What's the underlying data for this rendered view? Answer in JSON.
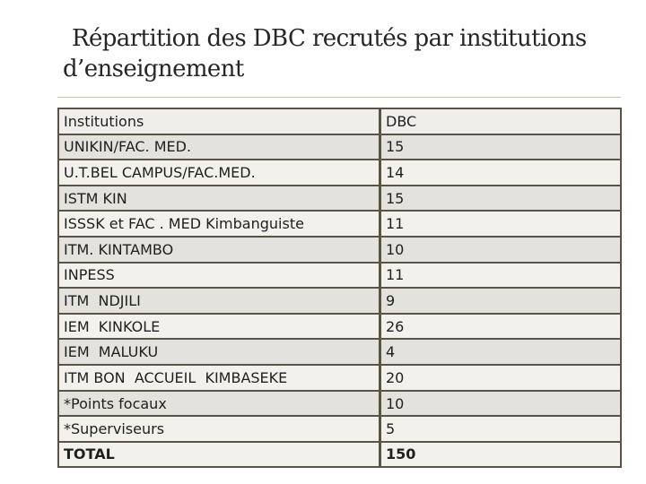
{
  "title": {
    "line1": "Répartition des DBC recrutés par institutions",
    "line2": "d’enseignement"
  },
  "table": {
    "headers": [
      "Institutions",
      "DBC"
    ],
    "rows": [
      [
        "UNIKIN/FAC. MED.",
        "15"
      ],
      [
        "U.T.BEL CAMPUS/FAC.MED.",
        "14"
      ],
      [
        "ISTM KIN",
        "15"
      ],
      [
        "ISSSK et FAC . MED Kimbanguiste",
        "11"
      ],
      [
        "ITM. KINTAMBO",
        "10"
      ],
      [
        "INPESS",
        "11"
      ],
      [
        "ITM  NDJILI",
        "9"
      ],
      [
        "IEM  KINKOLE",
        "26"
      ],
      [
        "IEM  MALUKU",
        "4"
      ],
      [
        "ITM BON  ACCUEIL  KIMBASEKE",
        "20"
      ],
      [
        "*Points focaux",
        "10"
      ],
      [
        "*Superviseurs",
        "5"
      ],
      [
        "TOTAL",
        "150"
      ]
    ]
  }
}
